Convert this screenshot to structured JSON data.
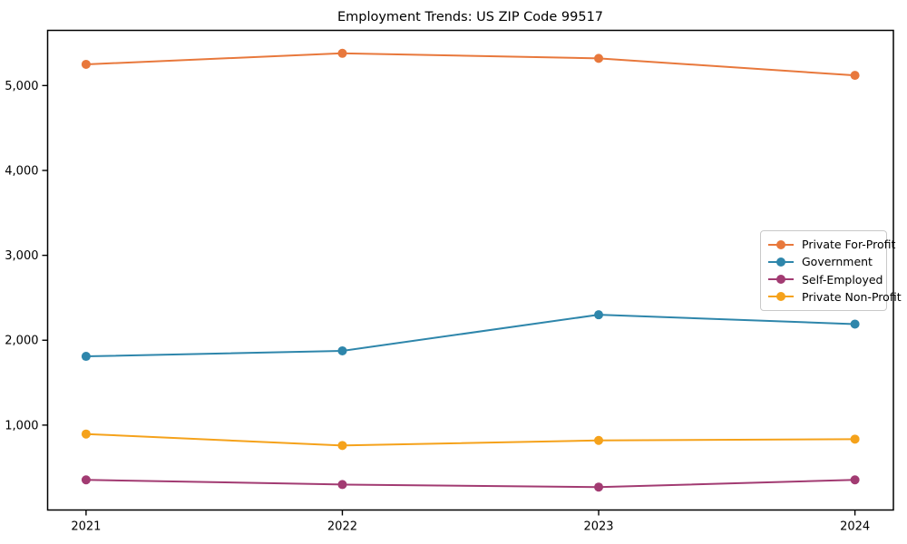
{
  "title": "Employment Trends: US ZIP Code 99517",
  "chart_data": {
    "type": "line",
    "title": "Employment Trends: US ZIP Code 99517",
    "xlabel": "",
    "ylabel": "",
    "x": [
      2021,
      2022,
      2023,
      2024
    ],
    "x_tick_labels": [
      "2021",
      "2022",
      "2023",
      "2024"
    ],
    "y_ticks": [
      {
        "value": 1000,
        "label": "1,000"
      },
      {
        "value": 2000,
        "label": "2,000"
      },
      {
        "value": 3000,
        "label": "3,000"
      },
      {
        "value": 4000,
        "label": "4,000"
      },
      {
        "value": 5000,
        "label": "5,000"
      }
    ],
    "xlim": [
      2020.85,
      2024.15
    ],
    "ylim": [
      0,
      5650
    ],
    "grid": false,
    "legend_position": "center-right",
    "marker": "circle",
    "series": [
      {
        "name": "Private For-Profit",
        "color": "#E8783C",
        "values": [
          5250,
          5380,
          5320,
          5120
        ]
      },
      {
        "name": "Government",
        "color": "#2E86AB",
        "values": [
          1810,
          1875,
          2300,
          2190
        ]
      },
      {
        "name": "Self-Employed",
        "color": "#A23B72",
        "values": [
          355,
          300,
          270,
          355
        ]
      },
      {
        "name": "Private Non-Profit",
        "color": "#F5A21B",
        "values": [
          895,
          760,
          820,
          835
        ]
      }
    ]
  }
}
